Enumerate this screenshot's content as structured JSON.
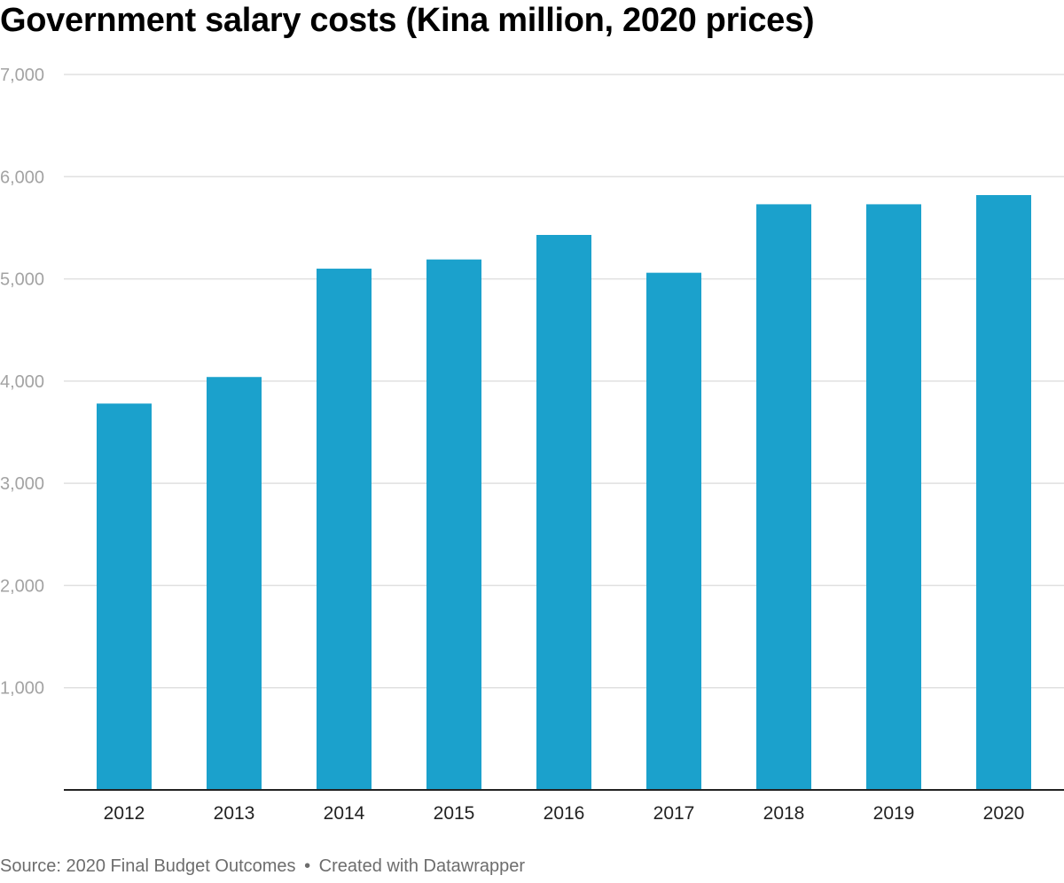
{
  "chart_data": {
    "type": "bar",
    "title": "Government salary costs (Kina million, 2020 prices)",
    "categories": [
      "2012",
      "2013",
      "2014",
      "2015",
      "2016",
      "2017",
      "2018",
      "2019",
      "2020"
    ],
    "values": [
      3780,
      4040,
      5100,
      5190,
      5430,
      5060,
      5730,
      5730,
      5820
    ],
    "ylim": [
      0,
      7000
    ],
    "yticks": [
      1000,
      2000,
      3000,
      4000,
      5000,
      6000,
      7000
    ],
    "ytick_labels": [
      "1,000",
      "2,000",
      "3,000",
      "4,000",
      "5,000",
      "6,000",
      "7,000"
    ],
    "xlabel": "",
    "ylabel": "",
    "grid": true,
    "legend": "none",
    "bar_color": "#1ba1cc",
    "grid_color": "#e0e0e0",
    "axis_color": "#222222"
  },
  "footer": {
    "source": "Source: 2020 Final Budget Outcomes",
    "separator": "•",
    "credit": "Created with Datawrapper"
  }
}
